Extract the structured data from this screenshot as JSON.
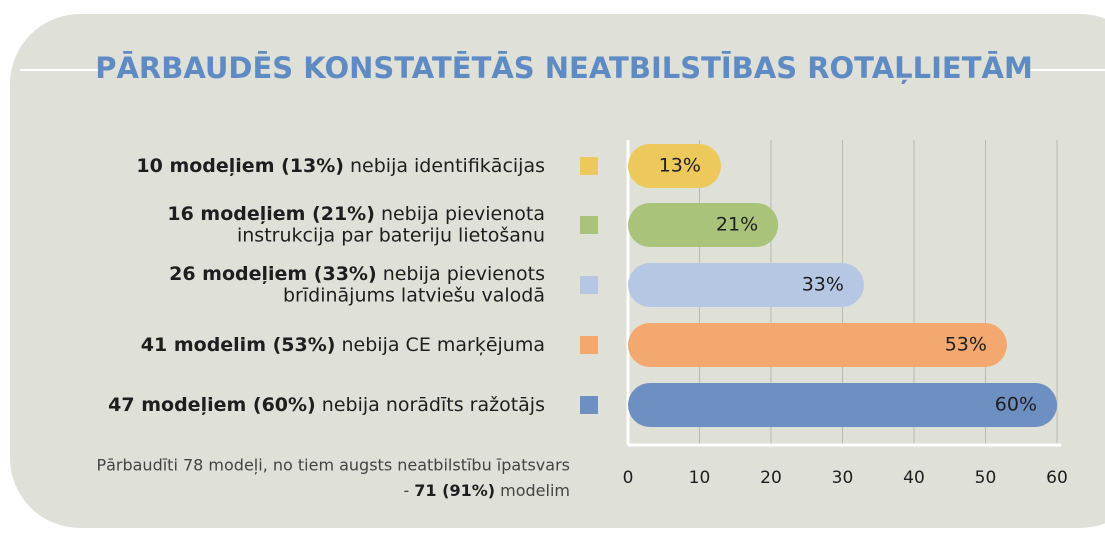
{
  "chart_data": {
    "type": "bar",
    "title": "PĀRBAUDĒS KONSTATĒTĀS NEATBILSTĪBAS ROTAĻLIETĀM",
    "categories": [
      {
        "bold": "10 modeļiem (13%)",
        "lines": [
          "nebija identifikācijas"
        ]
      },
      {
        "bold": "16 modeļiem (21%)",
        "lines": [
          "nebija pievienota",
          "instrukcija par bateriju lietošanu"
        ]
      },
      {
        "bold": "26 modeļiem (33%)",
        "lines": [
          "nebija pievienots",
          "brīdinājums latviešu valodā"
        ]
      },
      {
        "bold": "41 modelim (53%)",
        "lines": [
          "nebija CE marķējuma"
        ]
      },
      {
        "bold": "47 modeļiem (60%)",
        "lines": [
          "nebija norādīts ražotājs"
        ]
      }
    ],
    "values": [
      13,
      21,
      33,
      53,
      60
    ],
    "value_labels": [
      "13%",
      "21%",
      "33%",
      "53%",
      "60%"
    ],
    "colors": [
      "#ecc95a",
      "#a9c47a",
      "#b6c7e3",
      "#f2a86f",
      "#6e8fc2"
    ],
    "xlim": [
      0,
      60
    ],
    "xticks": [
      0,
      10,
      20,
      30,
      40,
      50,
      60
    ],
    "grid": true,
    "note": {
      "line1": "Pārbaudīti 78 modeļi, no tiem augsts neatbilstību īpatsvars",
      "pre": "- ",
      "bold": "71 (91%)",
      "post": " modelim"
    }
  }
}
